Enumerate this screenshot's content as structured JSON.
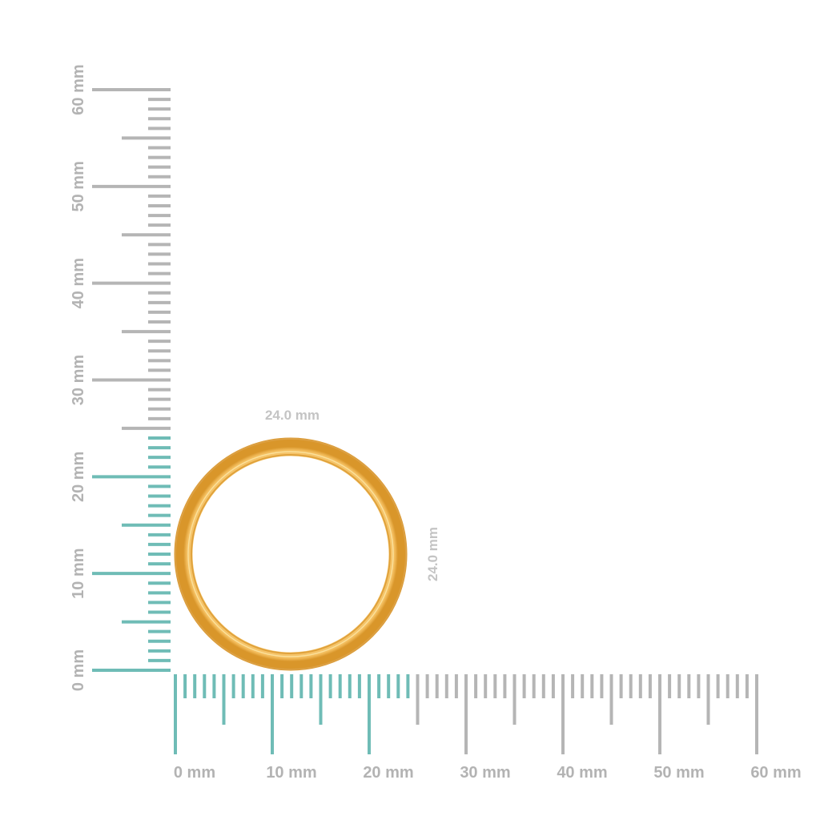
{
  "rulers": {
    "unit": "mm",
    "range_mm": [
      0,
      60
    ],
    "highlight_until_mm": 24,
    "highlight_color": "#6fbcb6",
    "tick_color": "#b5b5b5",
    "vertical_labels": [
      "0 mm",
      "10 mm",
      "20 mm",
      "30 mm",
      "40 mm",
      "50 mm",
      "60 mm"
    ],
    "horizontal_labels": [
      "0 mm",
      "10 mm",
      "20 mm",
      "30 mm",
      "40 mm",
      "50 mm",
      "60 mm"
    ]
  },
  "ring": {
    "width_label": "24.0 mm",
    "height_label": "24.0 mm",
    "outer_diameter_mm": 24.0,
    "metal_color": "#f6c46c"
  }
}
